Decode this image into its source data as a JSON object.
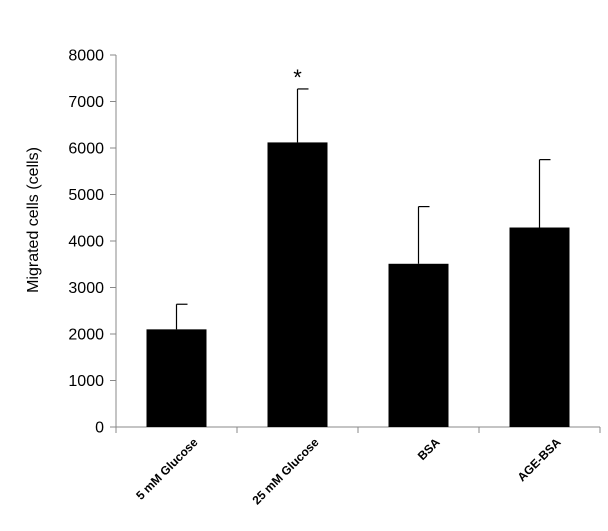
{
  "chart_data": {
    "type": "bar",
    "title": "",
    "xlabel": "",
    "ylabel": "Migrated cells (cells)",
    "ylim": [
      0,
      8000
    ],
    "yticks": [
      0,
      1000,
      2000,
      3000,
      4000,
      5000,
      6000,
      7000,
      8000
    ],
    "categories": [
      "5 mM Glucose",
      "25 mM Glucose",
      "BSA",
      "AGE-BSA"
    ],
    "values": [
      2100,
      6120,
      3510,
      4290
    ],
    "error_upper": [
      2640,
      7270,
      4740,
      5750
    ],
    "annotations": [
      {
        "category": "25 mM Glucose",
        "text": "*"
      }
    ],
    "bar_color": "#000000",
    "grid": false,
    "legend": "none"
  }
}
